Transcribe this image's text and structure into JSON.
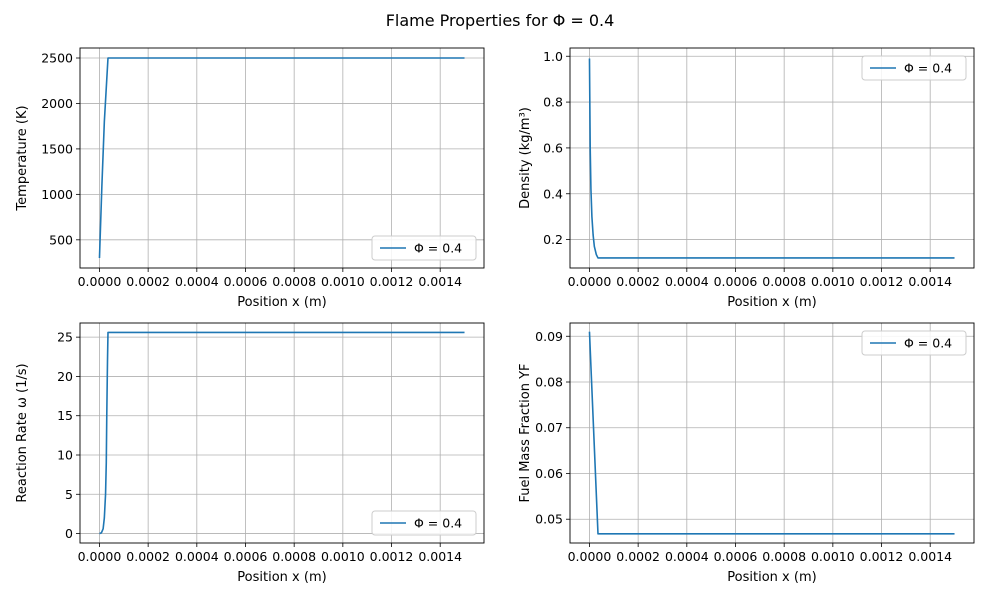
{
  "figure": {
    "suptitle": "Flame Properties for Φ = 0.4"
  },
  "chart_data": [
    {
      "type": "line",
      "xlabel": "Position x (m)",
      "ylabel": "Temperature (K)",
      "xlim": [
        -8e-05,
        0.00158
      ],
      "ylim": [
        190,
        2610
      ],
      "xticks": [
        0.0,
        0.0002,
        0.0004,
        0.0006,
        0.0008,
        0.001,
        0.0012,
        0.0014
      ],
      "xtick_labels": [
        "0.0000",
        "0.0002",
        "0.0004",
        "0.0006",
        "0.0008",
        "0.0010",
        "0.0012",
        "0.0014"
      ],
      "yticks": [
        500,
        1000,
        1500,
        2000,
        2500
      ],
      "ytick_labels": [
        "500",
        "1000",
        "1500",
        "2000",
        "2500"
      ],
      "grid": true,
      "legend_position": "lower-right",
      "series": [
        {
          "name": "Φ = 0.4",
          "color": "#1f77b4",
          "x": [
            0.0,
            1e-05,
            2e-05,
            3.5e-05,
            0.0015
          ],
          "y": [
            300,
            1100,
            1800,
            2500,
            2500
          ]
        }
      ]
    },
    {
      "type": "line",
      "xlabel": "Position x (m)",
      "ylabel": "Density (kg/m³)",
      "xlim": [
        -8e-05,
        0.00158
      ],
      "ylim": [
        0.076,
        1.036
      ],
      "xticks": [
        0.0,
        0.0002,
        0.0004,
        0.0006,
        0.0008,
        0.001,
        0.0012,
        0.0014
      ],
      "xtick_labels": [
        "0.0000",
        "0.0002",
        "0.0004",
        "0.0006",
        "0.0008",
        "0.0010",
        "0.0012",
        "0.0014"
      ],
      "yticks": [
        0.2,
        0.4,
        0.6,
        0.8,
        1.0
      ],
      "ytick_labels": [
        "0.2",
        "0.4",
        "0.6",
        "0.8",
        "1.0"
      ],
      "grid": true,
      "legend_position": "upper-right",
      "series": [
        {
          "name": "Φ = 0.4",
          "color": "#1f77b4",
          "x": [
            0.0,
            3e-06,
            6e-06,
            1e-05,
            1.5e-05,
            2e-05,
            2.8e-05,
            3.5e-05,
            0.0015
          ],
          "y": [
            0.99,
            0.6,
            0.42,
            0.3,
            0.22,
            0.17,
            0.135,
            0.12,
            0.12
          ]
        }
      ]
    },
    {
      "type": "line",
      "xlabel": "Position x (m)",
      "ylabel": "Reaction Rate ω (1/s)",
      "xlim": [
        -8e-05,
        0.00158
      ],
      "ylim": [
        -1.2,
        26.8
      ],
      "xticks": [
        0.0,
        0.0002,
        0.0004,
        0.0006,
        0.0008,
        0.001,
        0.0012,
        0.0014
      ],
      "xtick_labels": [
        "0.0000",
        "0.0002",
        "0.0004",
        "0.0006",
        "0.0008",
        "0.0010",
        "0.0012",
        "0.0014"
      ],
      "yticks": [
        0,
        5,
        10,
        15,
        20,
        25
      ],
      "ytick_labels": [
        "0",
        "5",
        "10",
        "15",
        "20",
        "25"
      ],
      "grid": true,
      "legend_position": "lower-right",
      "series": [
        {
          "name": "Φ = 0.4",
          "color": "#1f77b4",
          "x": [
            0.0,
            8e-06,
            1.5e-05,
            2e-05,
            2.5e-05,
            2.8e-05,
            3e-05,
            3.3e-05,
            3.5e-05,
            0.0015
          ],
          "y": [
            0.0,
            0.1,
            0.6,
            2.0,
            5.0,
            9.0,
            15.0,
            22.0,
            25.6,
            25.6
          ]
        }
      ]
    },
    {
      "type": "line",
      "xlabel": "Position x (m)",
      "ylabel": "Fuel Mass Fraction YF",
      "xlim": [
        -8e-05,
        0.00158
      ],
      "ylim": [
        0.0448,
        0.0929
      ],
      "xticks": [
        0.0,
        0.0002,
        0.0004,
        0.0006,
        0.0008,
        0.001,
        0.0012,
        0.0014
      ],
      "xtick_labels": [
        "0.0000",
        "0.0002",
        "0.0004",
        "0.0006",
        "0.0008",
        "0.0010",
        "0.0012",
        "0.0014"
      ],
      "yticks": [
        0.05,
        0.06,
        0.07,
        0.08,
        0.09
      ],
      "ytick_labels": [
        "0.05",
        "0.06",
        "0.07",
        "0.08",
        "0.09"
      ],
      "grid": true,
      "legend_position": "upper-right",
      "series": [
        {
          "name": "Φ = 0.4",
          "color": "#1f77b4",
          "x": [
            0.0,
            3.5e-05,
            0.0015
          ],
          "y": [
            0.091,
            0.0468,
            0.0468
          ]
        }
      ]
    }
  ]
}
